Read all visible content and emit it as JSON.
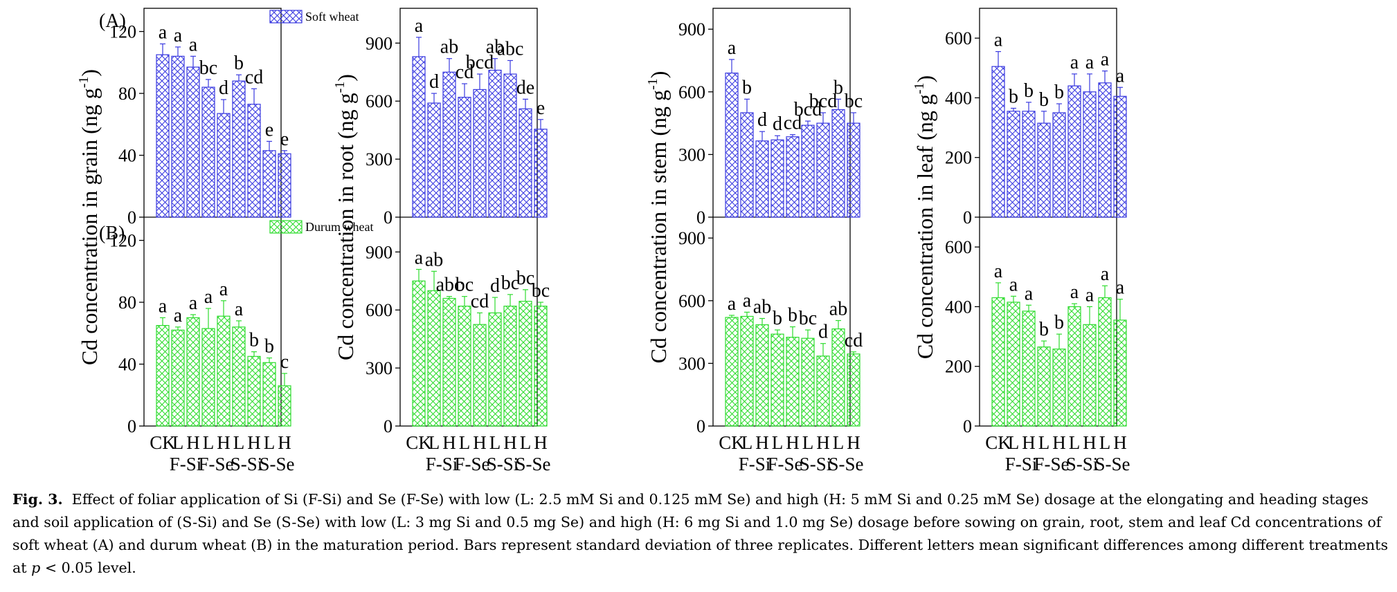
{
  "chart_data": {
    "type": "bar",
    "categories": [
      "CK",
      "L F-Si",
      "H F-Si",
      "L F-Se",
      "H F-Se",
      "L S-Si",
      "H S-Si",
      "L S-Se",
      "H S-Se"
    ],
    "tick_top": [
      "CK",
      "L",
      "H",
      "L",
      "H",
      "L",
      "H",
      "L",
      "H"
    ],
    "tick_groups": [
      "F-Si",
      "F-Se",
      "S-Si",
      "S-Se"
    ],
    "series": [
      {
        "name": "Soft wheat",
        "color": "#3a3ae0"
      },
      {
        "name": "Durum wheat",
        "color": "#2edc2e"
      }
    ],
    "panel_tags": [
      "(A)",
      "(B)"
    ],
    "panels": [
      {
        "id": "grain",
        "ylabel": "Cd concentration in grain (ng g",
        "ylabel_sup": "-1",
        "ylabel_close": ")",
        "ylim": [
          0,
          135
        ],
        "ticks": [
          "0",
          "40",
          "80",
          "120"
        ],
        "tick_values": [
          0,
          40,
          80,
          120
        ],
        "soft": {
          "values": [
            105,
            104,
            97,
            84,
            67,
            88,
            73,
            43,
            41
          ],
          "errors": [
            7,
            6,
            7,
            5,
            9,
            4,
            10,
            6,
            2
          ],
          "letters": [
            "a",
            "a",
            "a",
            "bc",
            "d",
            "b",
            "cd",
            "e",
            "e"
          ]
        },
        "durum": {
          "values": [
            65,
            62,
            70,
            63,
            71,
            64,
            45,
            41,
            26
          ],
          "errors": [
            5,
            2,
            2,
            13,
            10,
            4,
            3,
            3,
            8
          ],
          "letters": [
            "a",
            "a",
            "a",
            "a",
            "a",
            "a",
            "b",
            "b",
            "c"
          ]
        }
      },
      {
        "id": "root",
        "ylabel": "Cd concentration in root (ng g",
        "ylabel_sup": "-1",
        "ylabel_close": ")",
        "ylim": [
          0,
          1080
        ],
        "ticks": [
          "0",
          "300",
          "600",
          "900"
        ],
        "tick_values": [
          0,
          300,
          600,
          900
        ],
        "soft": {
          "values": [
            830,
            590,
            750,
            620,
            660,
            760,
            740,
            560,
            455
          ],
          "errors": [
            100,
            50,
            70,
            70,
            80,
            60,
            70,
            50,
            50
          ],
          "letters": [
            "a",
            "d",
            "ab",
            "cd",
            "bcd",
            "ab",
            "abc",
            "de",
            "e"
          ]
        },
        "durum": {
          "values": [
            750,
            700,
            660,
            620,
            525,
            585,
            620,
            645,
            620
          ],
          "errors": [
            60,
            100,
            10,
            50,
            60,
            80,
            60,
            60,
            20
          ],
          "letters": [
            "a",
            "ab",
            "abc",
            "bc",
            "cd",
            "d",
            "bc",
            "bc",
            "bc"
          ]
        }
      },
      {
        "id": "stem",
        "ylabel": "Cd concentration in stem (ng g",
        "ylabel_sup": "-1",
        "ylabel_close": ")",
        "ylim": [
          0,
          1000
        ],
        "ticks": [
          "0",
          "300",
          "600",
          "900"
        ],
        "tick_values": [
          0,
          300,
          600,
          900
        ],
        "soft": {
          "values": [
            690,
            500,
            365,
            370,
            385,
            440,
            450,
            515,
            450
          ],
          "errors": [
            65,
            65,
            45,
            20,
            10,
            20,
            50,
            50,
            50
          ],
          "letters": [
            "a",
            "b",
            "d",
            "d",
            "cd",
            "bcd",
            "bcd",
            "b",
            "bc"
          ]
        },
        "durum": {
          "values": [
            520,
            525,
            485,
            440,
            425,
            420,
            335,
            465,
            345
          ],
          "errors": [
            10,
            20,
            30,
            20,
            50,
            40,
            60,
            40,
            10
          ],
          "letters": [
            "a",
            "a",
            "ab",
            "b",
            "b",
            "bc",
            "d",
            "ab",
            "cd"
          ]
        }
      },
      {
        "id": "leaf",
        "ylabel": "Cd concentration in leaf (ng g",
        "ylabel_sup": "-1",
        "ylabel_close": ")",
        "ylim": [
          0,
          700
        ],
        "ticks": [
          "0",
          "200",
          "400",
          "600"
        ],
        "tick_values": [
          0,
          200,
          400,
          600
        ],
        "soft": {
          "values": [
            505,
            355,
            355,
            315,
            350,
            440,
            420,
            450,
            405
          ],
          "errors": [
            50,
            10,
            30,
            40,
            30,
            40,
            60,
            40,
            30
          ],
          "letters": [
            "a",
            "b",
            "b",
            "b",
            "b",
            "a",
            "a",
            "a",
            "a"
          ]
        },
        "durum": {
          "values": [
            430,
            415,
            385,
            265,
            258,
            400,
            340,
            430,
            355
          ],
          "errors": [
            50,
            20,
            20,
            20,
            50,
            10,
            60,
            40,
            70
          ],
          "letters": [
            "a",
            "a",
            "a",
            "b",
            "b",
            "a",
            "a",
            "a",
            "a"
          ]
        }
      }
    ]
  },
  "caption": {
    "label": "Fig. 3.",
    "text_before_p": "Effect of foliar application of Si (F-Si) and Se (F-Se) with low (L: 2.5 mM Si and 0.125 mM Se) and high (H: 5 mM Si and 0.25 mM Se) dosage at the elongating and heading stages and soil application of (S-Si) and Se (S-Se) with low (L: 3 mg Si and 0.5 mg Se) and high (H: 6 mg Si and 1.0 mg Se) dosage before sowing on grain, root, stem and leaf Cd concentrations of soft wheat (A) and durum wheat (B) in the maturation period. Bars represent standard deviation of three replicates. Different letters mean significant differences among different treatments at ",
    "p_symbol": "p",
    "text_after_p": " < 0.05 level."
  }
}
